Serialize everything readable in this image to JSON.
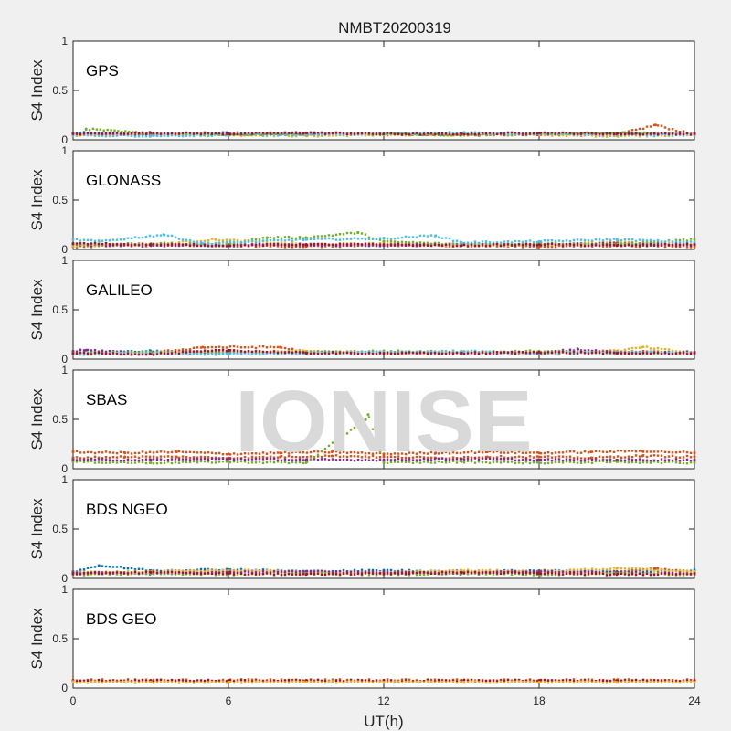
{
  "title": "NMBT20200319",
  "watermark": "IONISE",
  "xlabel": "UT(h)",
  "ylabel": "S4 Index",
  "x_ticks": [
    "0",
    "6",
    "12",
    "18",
    "24"
  ],
  "y_ticks": [
    "0",
    "0.5",
    "1"
  ],
  "colors": [
    "#0072bd",
    "#d95319",
    "#edb120",
    "#7e2f8e",
    "#77ac30",
    "#4dbeee",
    "#a2142f"
  ],
  "chart_data": [
    {
      "type": "scatter",
      "panel": "GPS",
      "xlim": [
        0,
        24
      ],
      "ylim": [
        0,
        1
      ],
      "x_unit": "h",
      "series": [
        {
          "color_index": 0,
          "x": [
            0,
            3,
            6,
            9,
            12,
            15,
            18,
            21,
            24
          ],
          "y": [
            0.07,
            0.06,
            0.07,
            0.06,
            0.06,
            0.07,
            0.06,
            0.06,
            0.06
          ]
        },
        {
          "color_index": 1,
          "x": [
            0,
            3,
            6,
            9,
            12,
            15,
            18,
            21,
            22.5,
            24
          ],
          "y": [
            0.05,
            0.06,
            0.06,
            0.07,
            0.05,
            0.06,
            0.05,
            0.05,
            0.15,
            0.05
          ]
        },
        {
          "color_index": 2,
          "x": [
            0,
            3,
            6,
            9,
            12,
            15,
            18,
            21,
            24
          ],
          "y": [
            0.04,
            0.05,
            0.05,
            0.04,
            0.05,
            0.05,
            0.05,
            0.04,
            0.05
          ]
        },
        {
          "color_index": 3,
          "x": [
            0,
            3,
            6,
            9,
            12,
            15,
            18,
            21,
            24
          ],
          "y": [
            0.06,
            0.05,
            0.06,
            0.07,
            0.06,
            0.05,
            0.06,
            0.06,
            0.07
          ]
        },
        {
          "color_index": 4,
          "x": [
            0.5,
            3,
            6,
            9,
            12,
            15,
            18,
            21,
            24
          ],
          "y": [
            0.11,
            0.06,
            0.05,
            0.06,
            0.06,
            0.05,
            0.06,
            0.07,
            0.06
          ]
        },
        {
          "color_index": 5,
          "x": [
            0,
            3,
            6,
            9,
            12,
            15,
            18,
            21,
            24
          ],
          "y": [
            0.05,
            0.04,
            0.05,
            0.05,
            0.06,
            0.07,
            0.06,
            0.05,
            0.05
          ]
        },
        {
          "color_index": 6,
          "x": [
            0,
            3,
            6,
            9,
            12,
            15,
            18,
            21,
            24
          ],
          "y": [
            0.06,
            0.07,
            0.06,
            0.07,
            0.06,
            0.06,
            0.07,
            0.06,
            0.06
          ]
        }
      ]
    },
    {
      "type": "scatter",
      "panel": "GLONASS",
      "xlim": [
        0,
        24
      ],
      "ylim": [
        0,
        1
      ],
      "x_unit": "h",
      "series": [
        {
          "color_index": 0,
          "x": [
            0,
            3,
            6,
            9,
            12,
            15,
            18,
            21,
            24
          ],
          "y": [
            0.04,
            0.05,
            0.04,
            0.05,
            0.04,
            0.05,
            0.04,
            0.05,
            0.04
          ]
        },
        {
          "color_index": 1,
          "x": [
            0,
            3,
            6,
            9,
            12,
            15,
            18,
            21,
            24
          ],
          "y": [
            0.03,
            0.04,
            0.04,
            0.03,
            0.04,
            0.04,
            0.03,
            0.04,
            0.03
          ]
        },
        {
          "color_index": 2,
          "x": [
            0,
            3,
            5.5,
            9,
            12,
            15,
            18,
            21,
            24
          ],
          "y": [
            0.04,
            0.05,
            0.1,
            0.05,
            0.06,
            0.04,
            0.05,
            0.07,
            0.05
          ]
        },
        {
          "color_index": 3,
          "x": [
            0,
            3,
            6,
            9,
            12,
            15,
            18,
            21,
            24
          ],
          "y": [
            0.05,
            0.04,
            0.05,
            0.05,
            0.04,
            0.05,
            0.05,
            0.06,
            0.05
          ]
        },
        {
          "color_index": 4,
          "x": [
            0,
            3,
            6,
            7.5,
            9,
            11,
            12,
            15,
            18,
            21,
            24
          ],
          "y": [
            0.05,
            0.06,
            0.05,
            0.12,
            0.12,
            0.17,
            0.08,
            0.05,
            0.06,
            0.05,
            0.1
          ]
        },
        {
          "color_index": 5,
          "x": [
            0,
            1,
            3.5,
            5,
            9,
            12,
            14,
            15,
            18,
            21,
            24
          ],
          "y": [
            0.1,
            0.08,
            0.15,
            0.06,
            0.1,
            0.11,
            0.14,
            0.07,
            0.08,
            0.1,
            0.07
          ]
        },
        {
          "color_index": 6,
          "x": [
            0,
            3,
            6,
            9,
            12,
            15,
            18,
            21,
            24
          ],
          "y": [
            0.06,
            0.05,
            0.04,
            0.05,
            0.05,
            0.04,
            0.05,
            0.04,
            0.05
          ]
        }
      ]
    },
    {
      "type": "scatter",
      "panel": "GALILEO",
      "xlim": [
        0,
        24
      ],
      "ylim": [
        0,
        1
      ],
      "x_unit": "h",
      "series": [
        {
          "color_index": 0,
          "x": [
            0,
            3,
            6,
            9,
            12,
            15,
            18,
            21,
            24
          ],
          "y": [
            0.06,
            0.08,
            0.06,
            0.07,
            0.06,
            0.07,
            0.06,
            0.07,
            0.06
          ]
        },
        {
          "color_index": 1,
          "x": [
            0,
            3,
            5,
            8,
            9,
            12,
            15,
            18,
            21,
            24
          ],
          "y": [
            0.05,
            0.06,
            0.12,
            0.12,
            0.07,
            0.06,
            0.07,
            0.06,
            0.08,
            0.06
          ]
        },
        {
          "color_index": 2,
          "x": [
            0,
            3,
            6,
            9,
            12,
            15,
            18,
            21,
            22,
            24
          ],
          "y": [
            0.05,
            0.06,
            0.07,
            0.08,
            0.06,
            0.07,
            0.06,
            0.08,
            0.12,
            0.06
          ]
        },
        {
          "color_index": 3,
          "x": [
            0,
            0.5,
            3,
            6,
            9,
            12,
            15,
            18,
            19.5,
            21,
            24
          ],
          "y": [
            0.08,
            0.09,
            0.06,
            0.07,
            0.06,
            0.07,
            0.06,
            0.06,
            0.1,
            0.06,
            0.07
          ]
        },
        {
          "color_index": 4,
          "x": [
            0,
            3,
            6,
            9,
            12,
            15,
            18,
            21,
            24
          ],
          "y": [
            0.06,
            0.07,
            0.06,
            0.07,
            0.08,
            0.07,
            0.08,
            0.06,
            0.06
          ]
        },
        {
          "color_index": 5,
          "x": [
            0,
            3,
            6,
            9,
            12,
            15,
            18,
            21,
            24
          ],
          "y": [
            0.05,
            0.06,
            0.05,
            0.06,
            0.07,
            0.08,
            0.06,
            0.07,
            0.06
          ]
        },
        {
          "color_index": 6,
          "x": [
            0,
            3,
            6,
            9,
            12,
            15,
            18,
            21,
            24
          ],
          "y": [
            0.06,
            0.05,
            0.09,
            0.06,
            0.06,
            0.06,
            0.07,
            0.06,
            0.06
          ]
        }
      ]
    },
    {
      "type": "scatter",
      "panel": "SBAS",
      "xlim": [
        0,
        24
      ],
      "ylim": [
        0,
        1
      ],
      "x_unit": "h",
      "series": [
        {
          "color_index": 1,
          "x": [
            0,
            2,
            4,
            6,
            8,
            10,
            12,
            14,
            16,
            18,
            20,
            22,
            24
          ],
          "y": [
            0.17,
            0.16,
            0.17,
            0.15,
            0.16,
            0.17,
            0.15,
            0.16,
            0.17,
            0.16,
            0.17,
            0.18,
            0.16
          ]
        },
        {
          "color_index": 1,
          "x": [
            0,
            2,
            4,
            6,
            8,
            10,
            12,
            14,
            16,
            18,
            20,
            22,
            24
          ],
          "y": [
            0.11,
            0.12,
            0.12,
            0.11,
            0.12,
            0.13,
            0.12,
            0.11,
            0.12,
            0.12,
            0.11,
            0.13,
            0.12
          ]
        },
        {
          "color_index": 3,
          "x": [
            0,
            3,
            6,
            9,
            12,
            15,
            18,
            21,
            24
          ],
          "y": [
            0.09,
            0.09,
            0.1,
            0.09,
            0.09,
            0.1,
            0.09,
            0.09,
            0.09
          ]
        },
        {
          "color_index": 4,
          "x": [
            0,
            3,
            6,
            9,
            11.3,
            11.4,
            12,
            15,
            18,
            21,
            24
          ],
          "y": [
            0.07,
            0.06,
            0.07,
            0.06,
            0.5,
            0.55,
            0.06,
            0.07,
            0.06,
            0.07,
            0.06
          ]
        }
      ]
    },
    {
      "type": "scatter",
      "panel": "BDS NGEO",
      "xlim": [
        0,
        24
      ],
      "ylim": [
        0,
        1
      ],
      "x_unit": "h",
      "series": [
        {
          "color_index": 0,
          "x": [
            0,
            1,
            3,
            6,
            9,
            12,
            15,
            18,
            21,
            24
          ],
          "y": [
            0.07,
            0.13,
            0.08,
            0.09,
            0.07,
            0.08,
            0.07,
            0.08,
            0.07,
            0.08
          ]
        },
        {
          "color_index": 1,
          "x": [
            0,
            3,
            6,
            9,
            12,
            15,
            18,
            21,
            22.5,
            24
          ],
          "y": [
            0.05,
            0.06,
            0.07,
            0.06,
            0.05,
            0.06,
            0.07,
            0.06,
            0.1,
            0.06
          ]
        },
        {
          "color_index": 2,
          "x": [
            0,
            3,
            6,
            9,
            12,
            15,
            18,
            21,
            24
          ],
          "y": [
            0.06,
            0.07,
            0.08,
            0.07,
            0.06,
            0.08,
            0.07,
            0.1,
            0.07
          ]
        },
        {
          "color_index": 3,
          "x": [
            0,
            3,
            6,
            9,
            12,
            15,
            18,
            21,
            24
          ],
          "y": [
            0.06,
            0.05,
            0.06,
            0.07,
            0.06,
            0.05,
            0.07,
            0.06,
            0.05
          ]
        },
        {
          "color_index": 4,
          "x": [
            0,
            3,
            6,
            9,
            12,
            15,
            18,
            21,
            24
          ],
          "y": [
            0.04,
            0.05,
            0.04,
            0.05,
            0.04,
            0.05,
            0.04,
            0.05,
            0.04
          ]
        },
        {
          "color_index": 6,
          "x": [
            0,
            3,
            6,
            9,
            12,
            15,
            18,
            21,
            24
          ],
          "y": [
            0.05,
            0.06,
            0.05,
            0.04,
            0.05,
            0.06,
            0.05,
            0.04,
            0.05
          ]
        }
      ]
    },
    {
      "type": "scatter",
      "panel": "BDS GEO",
      "xlim": [
        0,
        24
      ],
      "ylim": [
        0,
        1
      ],
      "x_unit": "h",
      "series": [
        {
          "color_index": 1,
          "x": [
            0,
            3,
            6,
            9,
            12,
            15,
            18,
            21,
            24
          ],
          "y": [
            0.08,
            0.08,
            0.08,
            0.08,
            0.08,
            0.08,
            0.08,
            0.08,
            0.08
          ]
        },
        {
          "color_index": 6,
          "x": [
            0,
            3,
            6,
            9,
            12,
            15,
            18,
            21,
            24
          ],
          "y": [
            0.075,
            0.075,
            0.075,
            0.075,
            0.075,
            0.075,
            0.075,
            0.075,
            0.075
          ]
        },
        {
          "color_index": 2,
          "x": [
            0,
            3,
            6,
            9,
            12,
            15,
            18,
            21,
            24
          ],
          "y": [
            0.06,
            0.06,
            0.06,
            0.06,
            0.06,
            0.06,
            0.06,
            0.06,
            0.06
          ]
        }
      ]
    }
  ]
}
